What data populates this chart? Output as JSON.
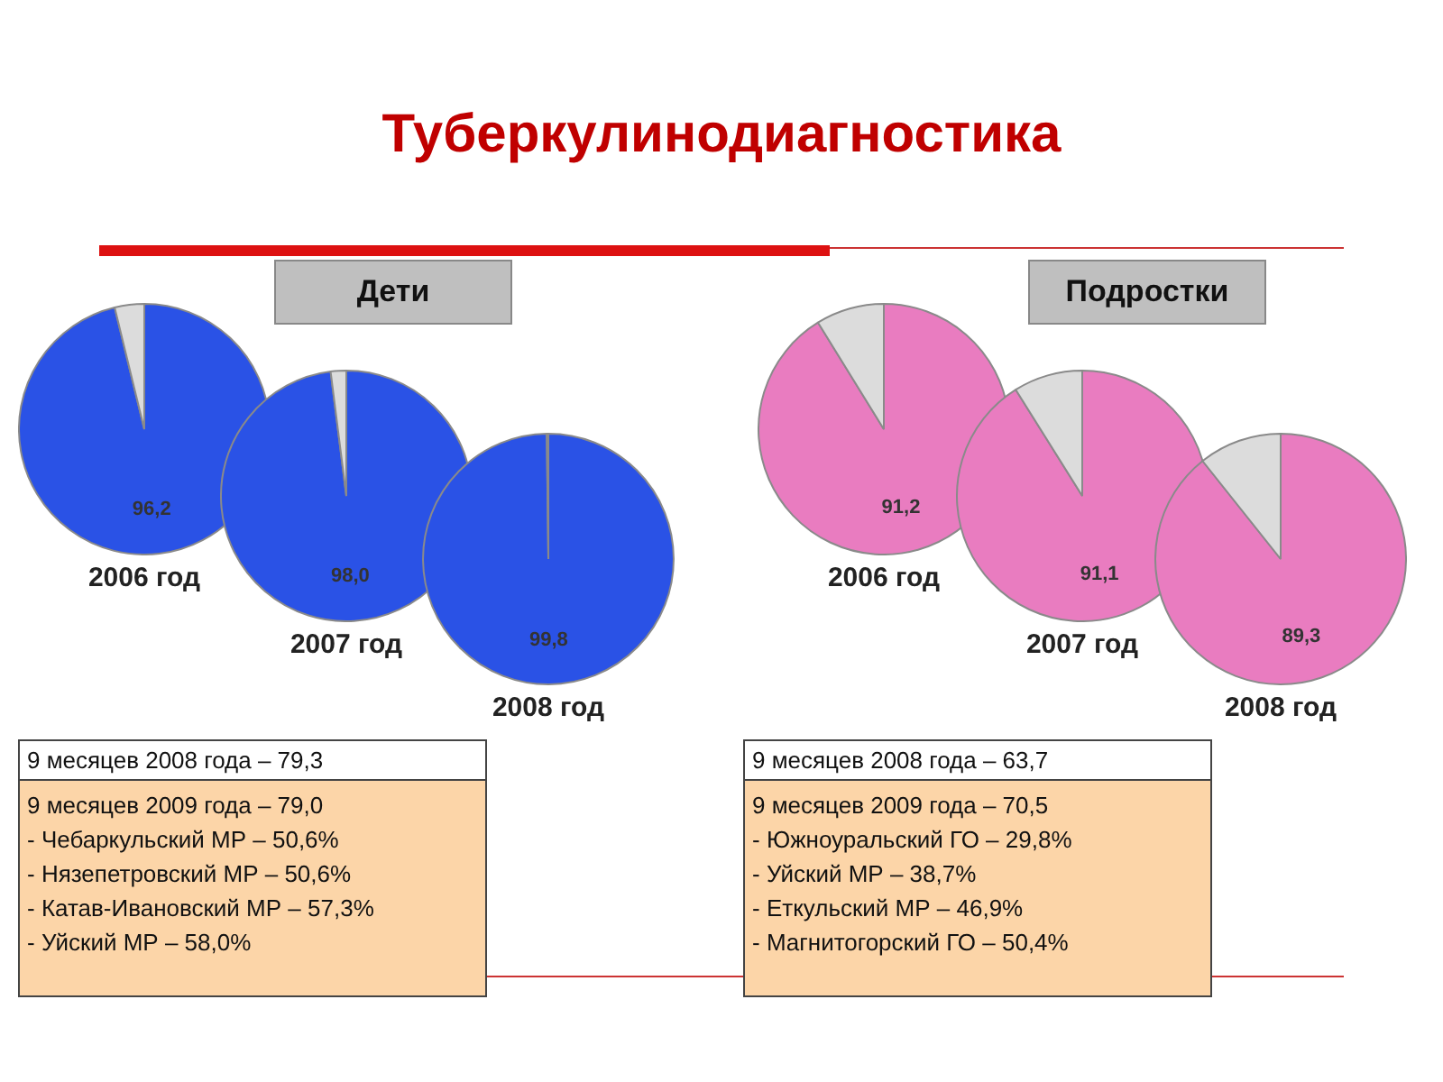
{
  "chart_data": [
    {
      "type": "other",
      "title": "Туберкулинодиагностика"
    },
    {
      "type": "other",
      "title": "Дети",
      "annotations": [
        "9 месяцев 2008 года – 79,3",
        "9 месяцев 2009 года – 79,0",
        "- Чебаркульский МР – 50,6%",
        "- Нязепетровский МР – 50,6%",
        "- Катав-Ивановский МР – 57,3%",
        "- Уйский МР – 58,0%"
      ]
    },
    {
      "type": "pie",
      "title": "2006 год",
      "categories": [
        null,
        null
      ],
      "values": [
        96.2,
        3.8
      ],
      "colors": [
        "#2a52e6",
        "#dcdcdc"
      ],
      "value_labels": [
        "96,2",
        null
      ]
    },
    {
      "type": "pie",
      "title": "2007 год",
      "categories": [
        null,
        null
      ],
      "values": [
        98.0,
        2.0
      ],
      "colors": [
        "#2a52e6",
        "#dcdcdc"
      ],
      "value_labels": [
        "98,0",
        null
      ]
    },
    {
      "type": "pie",
      "title": "2008 год",
      "categories": [
        null,
        null
      ],
      "values": [
        99.8,
        0.2
      ],
      "colors": [
        "#2a52e6",
        "#dcdcdc"
      ],
      "value_labels": [
        "99,8",
        null
      ]
    },
    {
      "type": "other",
      "title": "Подростки",
      "annotations": [
        "9 месяцев 2008 года – 63,7",
        "9 месяцев 2009 года – 70,5",
        "- Южноуральский ГО – 29,8%",
        "- Уйский МР – 38,7%",
        "- Еткульский МР – 46,9%",
        "- Магнитогорский ГО – 50,4%"
      ]
    },
    {
      "type": "pie",
      "title": "2006 год",
      "categories": [
        null,
        null
      ],
      "values": [
        91.2,
        8.8
      ],
      "colors": [
        "#e97cc0",
        "#dcdcdc"
      ],
      "value_labels": [
        "91,2",
        null
      ]
    },
    {
      "type": "pie",
      "title": "2007 год",
      "categories": [
        null,
        null
      ],
      "values": [
        91.1,
        8.9
      ],
      "colors": [
        "#e97cc0",
        "#dcdcdc"
      ],
      "value_labels": [
        "91,1",
        null
      ]
    },
    {
      "type": "pie",
      "title": "2008 год",
      "categories": [
        null,
        null
      ],
      "values": [
        89.3,
        10.7
      ],
      "colors": [
        "#e97cc0",
        "#dcdcdc"
      ],
      "value_labels": [
        "89,3",
        null
      ]
    }
  ]
}
